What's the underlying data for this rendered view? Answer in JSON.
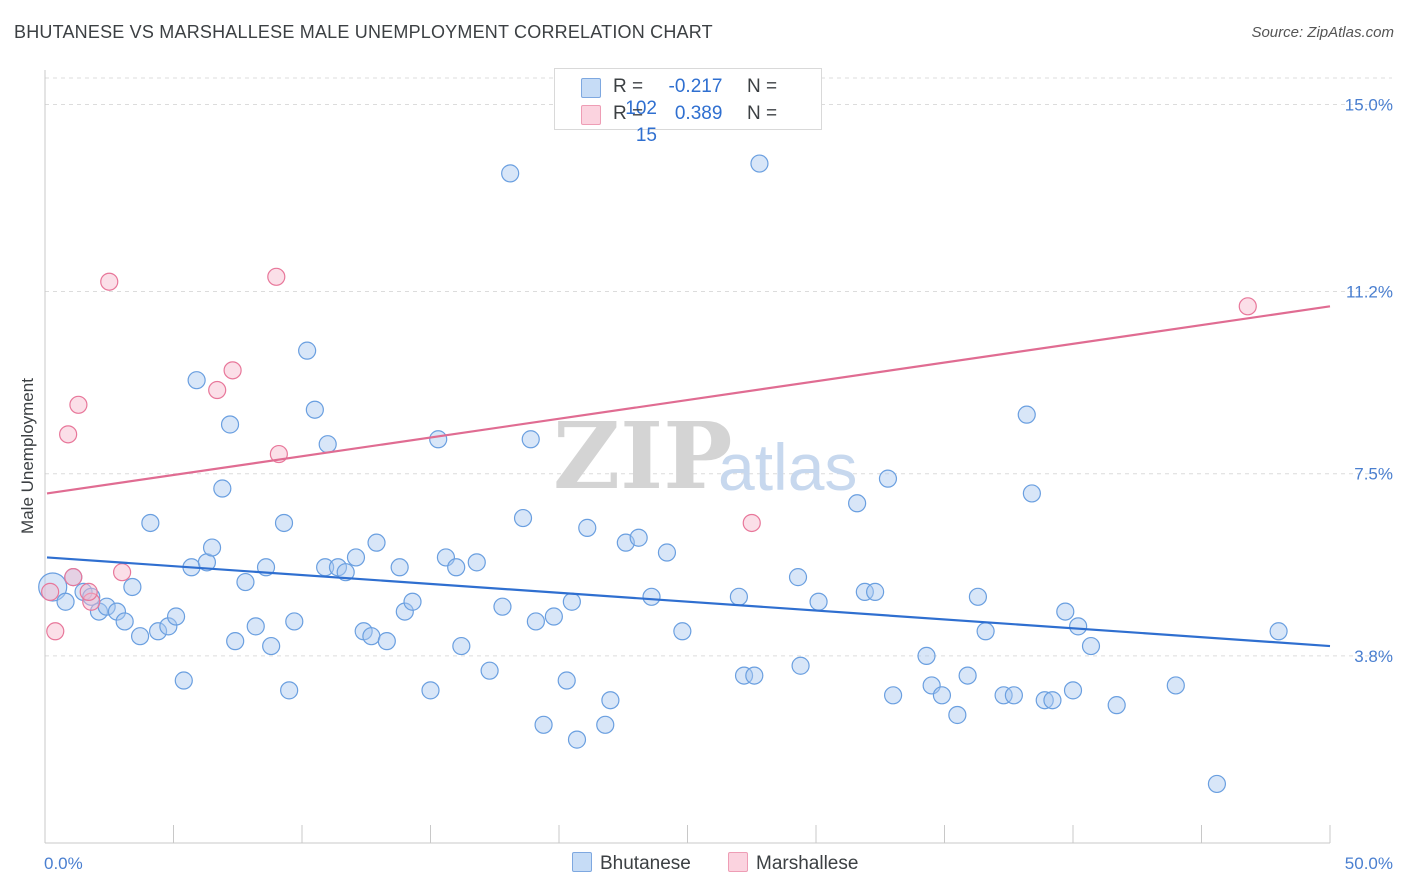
{
  "title": "BHUTANESE VS MARSHALLESE MALE UNEMPLOYMENT CORRELATION CHART",
  "source": "Source: ZipAtlas.com",
  "watermark": {
    "zip": "ZIP",
    "atlas": "atlas"
  },
  "legend": {
    "rows": [
      {
        "r_label": "R =",
        "r_value": "-0.217",
        "n_label": "N =",
        "n_value": "102",
        "color": "#a8c8f0"
      },
      {
        "r_label": "R =",
        "r_value": "0.389",
        "n_label": "N =",
        "n_value": "15",
        "color": "#f6b8cb"
      }
    ]
  },
  "bottom_legend": [
    {
      "label": "Bhutanese",
      "color": "#a8c8f0"
    },
    {
      "label": "Marshallese",
      "color": "#f6b8cb"
    }
  ],
  "chart_data": {
    "type": "scatter",
    "title": "BHUTANESE VS MARSHALLESE MALE UNEMPLOYMENT CORRELATION CHART",
    "xlabel": "",
    "ylabel": "Male Unemployment",
    "xlim": [
      0,
      50
    ],
    "ylim": [
      0,
      15.7
    ],
    "x_tick_labels": [
      "0.0%",
      "50.0%"
    ],
    "y_ticks": [
      3.8,
      7.5,
      11.2,
      15.0
    ],
    "y_tick_labels": [
      "3.8%",
      "7.5%",
      "11.2%",
      "15.0%"
    ],
    "grid": "horizontal dashed",
    "legend_position": "top-center",
    "series": [
      {
        "name": "Bhutanese",
        "color": "#6a9fe0",
        "fill": "#a8c8f0",
        "trend": {
          "x": [
            0,
            50
          ],
          "y": [
            5.8,
            4.0
          ]
        },
        "points": [
          [
            0.3,
            5.2
          ],
          [
            0.8,
            4.9
          ],
          [
            1.1,
            5.4
          ],
          [
            1.5,
            5.1
          ],
          [
            1.8,
            5.0
          ],
          [
            2.1,
            4.7
          ],
          [
            2.4,
            4.8
          ],
          [
            2.8,
            4.7
          ],
          [
            3.1,
            4.5
          ],
          [
            3.4,
            5.2
          ],
          [
            3.7,
            4.2
          ],
          [
            4.1,
            6.5
          ],
          [
            4.4,
            4.3
          ],
          [
            4.8,
            4.4
          ],
          [
            5.1,
            4.6
          ],
          [
            5.4,
            3.3
          ],
          [
            5.7,
            5.6
          ],
          [
            5.9,
            9.4
          ],
          [
            6.3,
            5.7
          ],
          [
            6.5,
            6.0
          ],
          [
            6.9,
            7.2
          ],
          [
            7.2,
            8.5
          ],
          [
            7.4,
            4.1
          ],
          [
            7.8,
            5.3
          ],
          [
            8.2,
            4.4
          ],
          [
            8.6,
            5.6
          ],
          [
            8.8,
            4.0
          ],
          [
            9.3,
            6.5
          ],
          [
            9.5,
            3.1
          ],
          [
            9.7,
            4.5
          ],
          [
            10.2,
            10.0
          ],
          [
            10.5,
            8.8
          ],
          [
            10.9,
            5.6
          ],
          [
            11.0,
            8.1
          ],
          [
            11.4,
            5.6
          ],
          [
            11.7,
            5.5
          ],
          [
            12.1,
            5.8
          ],
          [
            12.4,
            4.3
          ],
          [
            12.7,
            4.2
          ],
          [
            12.9,
            6.1
          ],
          [
            13.3,
            4.1
          ],
          [
            13.8,
            5.6
          ],
          [
            14.0,
            4.7
          ],
          [
            14.3,
            4.9
          ],
          [
            15.0,
            3.1
          ],
          [
            15.3,
            8.2
          ],
          [
            15.6,
            5.8
          ],
          [
            16.0,
            5.6
          ],
          [
            16.2,
            4.0
          ],
          [
            16.8,
            5.7
          ],
          [
            17.3,
            3.5
          ],
          [
            17.8,
            4.8
          ],
          [
            18.1,
            13.6
          ],
          [
            18.6,
            6.6
          ],
          [
            18.9,
            8.2
          ],
          [
            19.1,
            4.5
          ],
          [
            19.4,
            2.4
          ],
          [
            19.8,
            4.6
          ],
          [
            20.3,
            3.3
          ],
          [
            20.5,
            4.9
          ],
          [
            20.7,
            2.1
          ],
          [
            21.1,
            6.4
          ],
          [
            21.8,
            2.4
          ],
          [
            22.0,
            2.9
          ],
          [
            22.6,
            6.1
          ],
          [
            23.1,
            6.2
          ],
          [
            23.6,
            5.0
          ],
          [
            24.2,
            5.9
          ],
          [
            24.8,
            4.3
          ],
          [
            27.0,
            5.0
          ],
          [
            27.2,
            3.4
          ],
          [
            27.6,
            3.4
          ],
          [
            27.8,
            13.8
          ],
          [
            29.3,
            5.4
          ],
          [
            29.4,
            3.6
          ],
          [
            30.1,
            4.9
          ],
          [
            31.6,
            6.9
          ],
          [
            31.9,
            5.1
          ],
          [
            32.3,
            5.1
          ],
          [
            32.8,
            7.4
          ],
          [
            33.0,
            3.0
          ],
          [
            34.3,
            3.8
          ],
          [
            34.5,
            3.2
          ],
          [
            34.9,
            3.0
          ],
          [
            35.5,
            2.6
          ],
          [
            35.9,
            3.4
          ],
          [
            36.3,
            5.0
          ],
          [
            36.6,
            4.3
          ],
          [
            37.3,
            3.0
          ],
          [
            37.7,
            3.0
          ],
          [
            38.2,
            8.7
          ],
          [
            38.4,
            7.1
          ],
          [
            38.9,
            2.9
          ],
          [
            39.2,
            2.9
          ],
          [
            39.7,
            4.7
          ],
          [
            40.0,
            3.1
          ],
          [
            40.2,
            4.4
          ],
          [
            40.7,
            4.0
          ],
          [
            41.7,
            2.8
          ],
          [
            44.0,
            3.2
          ],
          [
            45.6,
            1.2
          ],
          [
            48.0,
            4.3
          ]
        ]
      },
      {
        "name": "Marshallese",
        "color": "#e8779a",
        "fill": "#f6b8cb",
        "trend": {
          "x": [
            0,
            50
          ],
          "y": [
            7.1,
            10.9
          ]
        },
        "points": [
          [
            0.4,
            4.3
          ],
          [
            0.9,
            8.3
          ],
          [
            1.1,
            5.4
          ],
          [
            1.3,
            8.9
          ],
          [
            1.8,
            4.9
          ],
          [
            2.5,
            11.4
          ],
          [
            3.0,
            5.5
          ],
          [
            6.7,
            9.2
          ],
          [
            7.3,
            9.6
          ],
          [
            9.0,
            11.5
          ],
          [
            9.1,
            7.9
          ],
          [
            27.5,
            6.5
          ],
          [
            46.8,
            10.9
          ],
          [
            1.7,
            5.1
          ],
          [
            0.2,
            5.1
          ]
        ]
      }
    ]
  }
}
